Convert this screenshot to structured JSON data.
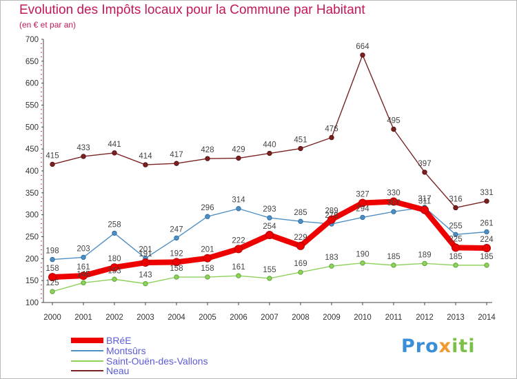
{
  "header": {
    "title": "Evolution des Impôts locaux pour la Commune par Habitant",
    "subtitle": "(en € et par an)"
  },
  "logo": {
    "p1": "Pro",
    "p2": "x",
    "p3": "iti"
  },
  "chart_data": {
    "type": "line",
    "title": "Evolution des Impôts locaux pour la Commune par Habitant",
    "subtitle": "(en € et par an)",
    "x": [
      2000,
      2001,
      2002,
      2003,
      2004,
      2005,
      2006,
      2007,
      2008,
      2009,
      2010,
      2011,
      2012,
      2013,
      2014
    ],
    "ylim": [
      100,
      700
    ],
    "yticks": [
      100,
      150,
      200,
      250,
      300,
      350,
      400,
      450,
      500,
      550,
      600,
      650,
      700
    ],
    "grid": false,
    "legend_position": "bottom-left",
    "series": [
      {
        "name": "BRéE",
        "color": "#ee0000",
        "values": [
          158,
          161,
          180,
          191,
          192,
          201,
          222,
          254,
          229,
          289,
          327,
          330,
          311,
          225,
          224
        ]
      },
      {
        "name": "Montsûrs",
        "color": "#4f8fc4",
        "values": [
          198,
          203,
          258,
          201,
          247,
          296,
          314,
          293,
          285,
          279,
          294,
          307,
          317,
          255,
          261
        ]
      },
      {
        "name": "Saint-Ouën-des-Vallons",
        "color": "#8ed25a",
        "values": [
          125,
          145,
          153,
          143,
          158,
          158,
          161,
          155,
          169,
          183,
          190,
          185,
          189,
          185,
          185
        ]
      },
      {
        "name": "Neau",
        "color": "#7a2222",
        "values": [
          415,
          433,
          441,
          414,
          417,
          428,
          429,
          440,
          451,
          476,
          664,
          495,
          397,
          316,
          331
        ]
      }
    ]
  }
}
